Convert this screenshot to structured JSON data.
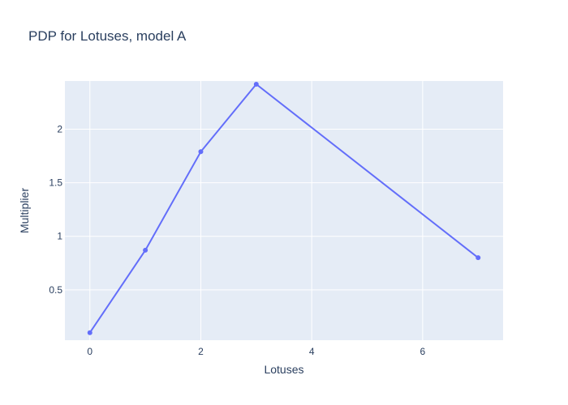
{
  "chart_data": {
    "type": "line",
    "title": "PDP for Lotuses, model A",
    "xlabel": "Lotuses",
    "ylabel": "Multiplier",
    "x": [
      0,
      1,
      2,
      3,
      7
    ],
    "series": [
      {
        "values": [
          0.1,
          0.87,
          1.79,
          2.42,
          0.8
        ]
      }
    ],
    "xlim": [
      -0.45,
      7.45
    ],
    "ylim": [
      0.03,
      2.45
    ],
    "xticks": [
      0,
      2,
      4,
      6
    ],
    "xtick_labels": [
      "0",
      "2",
      "4",
      "6"
    ],
    "yticks": [
      0.5,
      1,
      1.5,
      2
    ],
    "ytick_labels": [
      "0.5",
      "1",
      "1.5",
      "2"
    ],
    "grid": true,
    "line_color": "#636efa",
    "plot_bg": "#e5ecf6",
    "grid_color": "#ffffff"
  }
}
